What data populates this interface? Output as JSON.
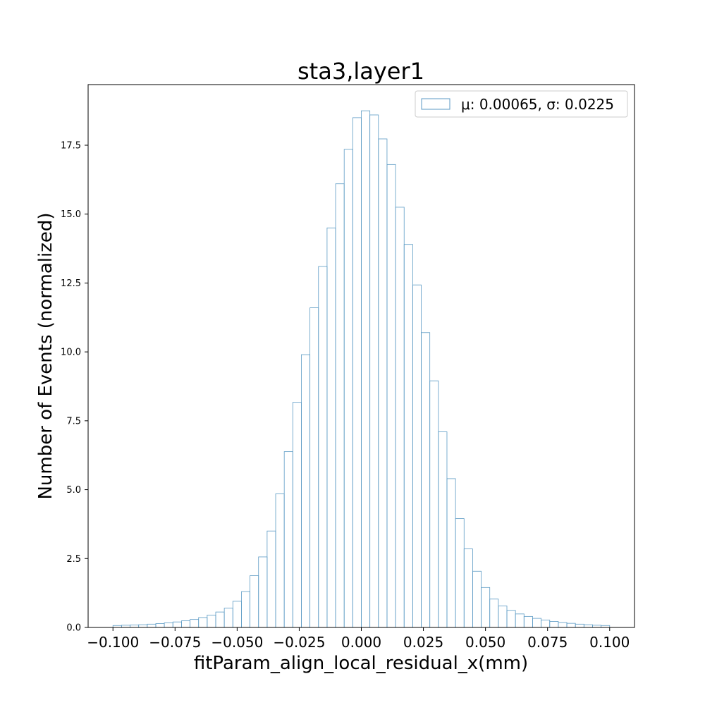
{
  "chart_data": {
    "type": "histogram",
    "title": "sta3,layer1",
    "xlabel": "fitParam_align_local_residual_x(mm)",
    "ylabel": "Number of Events (normalized)",
    "xlim": [
      -0.11,
      0.11
    ],
    "ylim": [
      0,
      19.7
    ],
    "xticks": [
      -0.1,
      -0.075,
      -0.05,
      -0.025,
      0.0,
      0.025,
      0.05,
      0.075,
      0.1
    ],
    "xtick_labels": [
      "−0.100",
      "−0.075",
      "−0.050",
      "−0.025",
      "0.000",
      "0.025",
      "0.050",
      "0.075",
      "0.100"
    ],
    "yticks": [
      0.0,
      2.5,
      5.0,
      7.5,
      10.0,
      12.5,
      15.0,
      17.5
    ],
    "ytick_labels": [
      "0.0",
      "2.5",
      "5.0",
      "7.5",
      "10.0",
      "12.5",
      "15.0",
      "17.5"
    ],
    "bin_range": [
      -0.1,
      0.1
    ],
    "bin_count": 58,
    "values": [
      0.07,
      0.08,
      0.09,
      0.1,
      0.12,
      0.14,
      0.17,
      0.2,
      0.24,
      0.29,
      0.36,
      0.45,
      0.56,
      0.7,
      0.95,
      1.3,
      1.88,
      2.56,
      3.5,
      4.85,
      6.38,
      8.17,
      9.9,
      11.6,
      13.1,
      14.5,
      16.1,
      17.35,
      18.5,
      18.75,
      18.6,
      17.73,
      16.8,
      15.25,
      13.9,
      12.43,
      10.7,
      8.95,
      7.1,
      5.4,
      3.95,
      2.85,
      2.04,
      1.45,
      1.03,
      0.78,
      0.62,
      0.49,
      0.4,
      0.33,
      0.27,
      0.22,
      0.18,
      0.15,
      0.12,
      0.1,
      0.08,
      0.07
    ],
    "series": [
      {
        "name": "μ: 0.00065, σ: 0.0225",
        "color": "#5b9ac4"
      }
    ],
    "legend_position": "top-right",
    "grid": false
  }
}
